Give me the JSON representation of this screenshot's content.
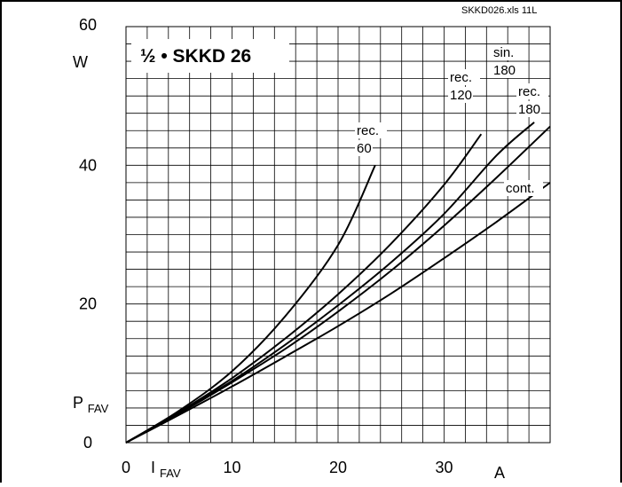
{
  "chart_data": {
    "type": "line",
    "title": "½ • SKKD 26",
    "file_label": "SKKD026.xls 11L",
    "xlabel": "I",
    "xlabel_sub": "FAV",
    "xunit": "A",
    "ylabel": "P",
    "ylabel_sub": "FAV",
    "yunit": "W",
    "xlim": [
      0,
      40
    ],
    "ylim": [
      0,
      60
    ],
    "x_ticks": [
      0,
      10,
      20,
      30
    ],
    "y_ticks": [
      0,
      20,
      40,
      60
    ],
    "grid": true,
    "series": [
      {
        "name": "rec. 60",
        "label_lines": [
          "rec.",
          "60"
        ],
        "x": [
          0,
          5,
          10,
          15,
          20,
          23.5
        ],
        "y": [
          0,
          4.6,
          10.3,
          18.2,
          28.5,
          40.0
        ]
      },
      {
        "name": "rec. 120",
        "label_lines": [
          "rec.",
          "120"
        ],
        "x": [
          0,
          5,
          10,
          15,
          20,
          25,
          30,
          33.5
        ],
        "y": [
          0,
          4.4,
          9.3,
          15.0,
          21.4,
          28.7,
          37.2,
          44.5
        ]
      },
      {
        "name": "sin. 180",
        "label_lines": [
          "sin.",
          "180"
        ],
        "x": [
          0,
          5,
          10,
          15,
          20,
          25,
          30,
          35,
          38.5
        ],
        "y": [
          0,
          4.3,
          8.9,
          14.1,
          19.8,
          26.0,
          33.0,
          41.5,
          46.2
        ]
      },
      {
        "name": "rec. 180",
        "label_lines": [
          "rec.",
          "180"
        ],
        "x": [
          0,
          5,
          10,
          15,
          20,
          25,
          30,
          35,
          40
        ],
        "y": [
          0,
          4.2,
          8.7,
          13.5,
          18.9,
          24.8,
          31.3,
          38.3,
          45.6
        ]
      },
      {
        "name": "cont.",
        "label_lines": [
          "cont."
        ],
        "x": [
          0,
          5,
          10,
          15,
          20,
          25,
          30,
          35,
          40
        ],
        "y": [
          0,
          4.0,
          8.1,
          12.4,
          16.8,
          21.5,
          26.6,
          31.9,
          37.5
        ]
      }
    ]
  }
}
